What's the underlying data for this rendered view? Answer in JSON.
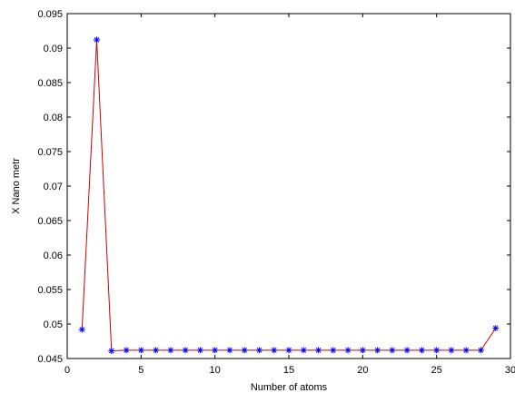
{
  "chart_data": {
    "type": "line",
    "title": "",
    "xlabel": "Number of atoms",
    "ylabel": "X  Nano metr",
    "xlim": [
      0,
      30
    ],
    "ylim": [
      0.045,
      0.095
    ],
    "xticks": [
      "0",
      "5",
      "10",
      "15",
      "20",
      "25",
      "30"
    ],
    "yticks": [
      "0.045",
      "0.05",
      "0.055",
      "0.06",
      "0.065",
      "0.07",
      "0.075",
      "0.08",
      "0.085",
      "0.09",
      "0.095"
    ],
    "grid": false,
    "legend": "none",
    "series": [
      {
        "line_color": "#cc0000",
        "marker_color": "#0000ff",
        "marker": "star",
        "x": [
          1,
          2,
          3,
          4,
          5,
          6,
          7,
          8,
          9,
          10,
          11,
          12,
          13,
          14,
          15,
          16,
          17,
          18,
          19,
          20,
          21,
          22,
          23,
          24,
          25,
          26,
          27,
          28,
          29
        ],
        "y": [
          0.0492,
          0.0912,
          0.0461,
          0.0462,
          0.0462,
          0.0462,
          0.0462,
          0.0462,
          0.0462,
          0.0462,
          0.0462,
          0.0462,
          0.0462,
          0.0462,
          0.0462,
          0.0462,
          0.0462,
          0.0462,
          0.0462,
          0.0462,
          0.0462,
          0.0462,
          0.0462,
          0.0462,
          0.0462,
          0.0462,
          0.0462,
          0.0462,
          0.0494
        ]
      }
    ]
  }
}
